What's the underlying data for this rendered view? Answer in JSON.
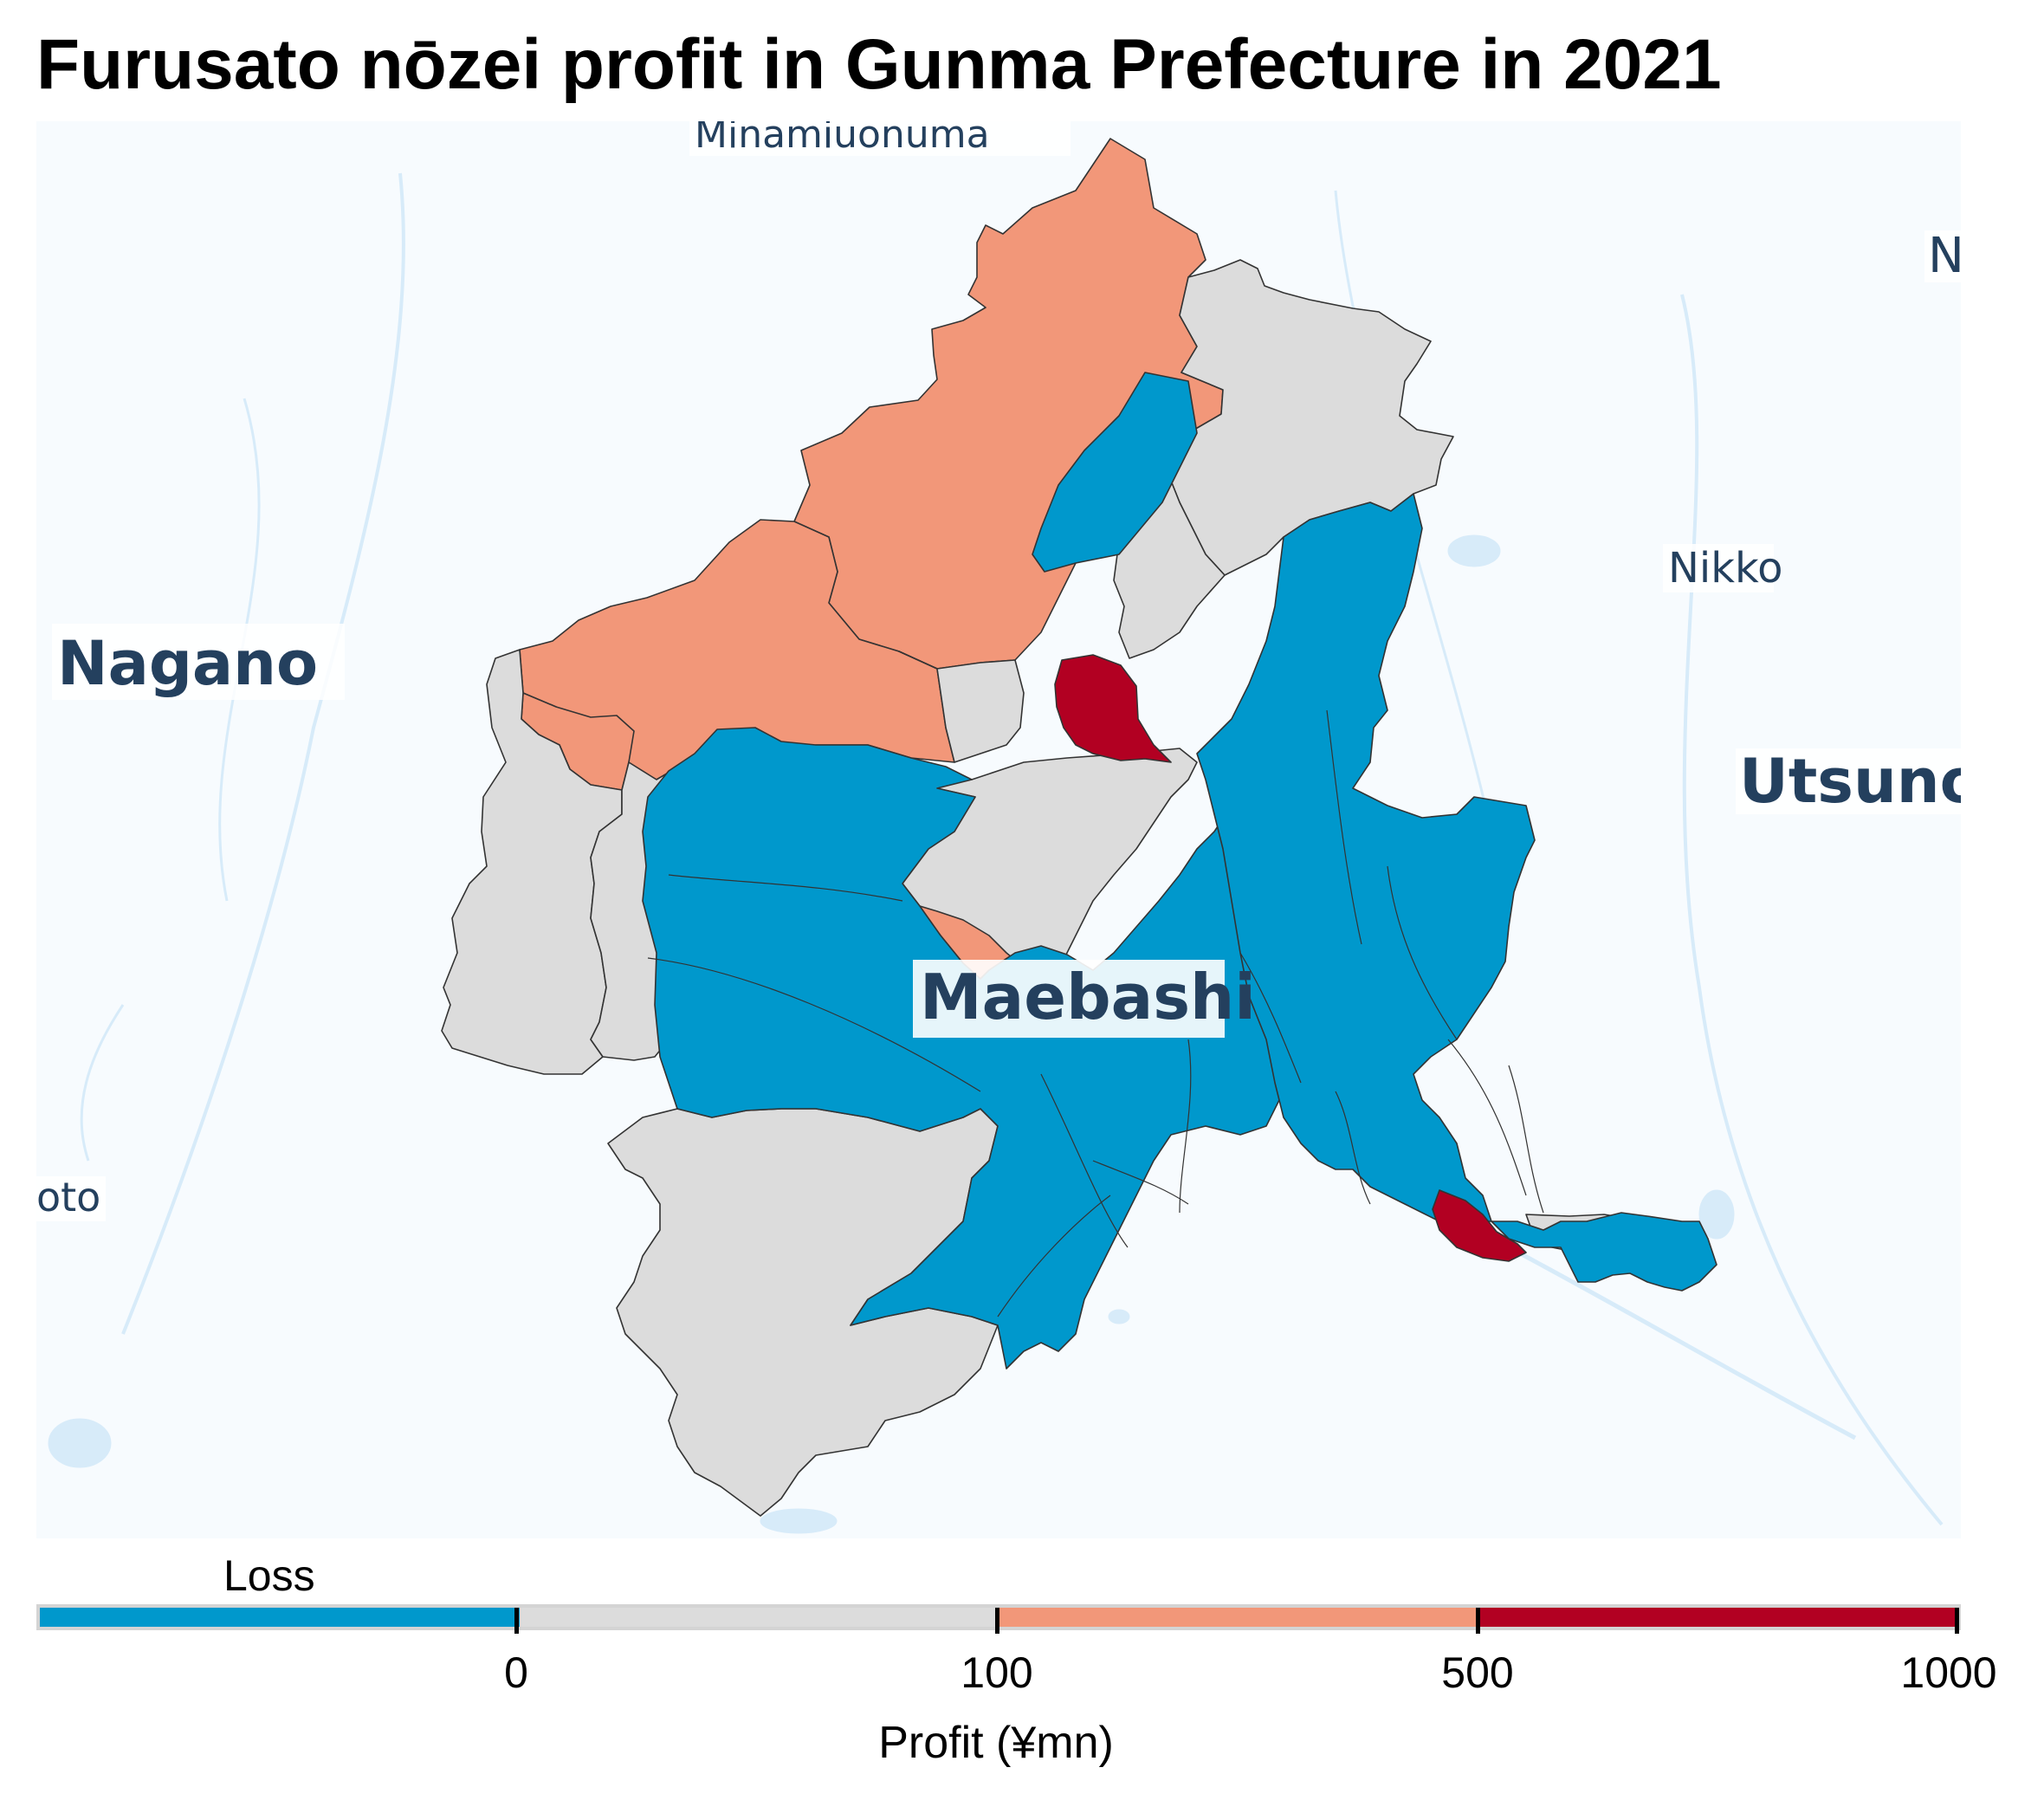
{
  "title": "Furusato nōzei profit in Gunma Prefecture in 2021",
  "colors": {
    "loss": "#0098cc",
    "profit_0_100": "#dcdcdc",
    "profit_100_500": "#f29779",
    "profit_500_1000": "#b20022",
    "background": "#f7fbfe",
    "water": "#d7ebf9",
    "label_text": "#24405e"
  },
  "map": {
    "place_labels": [
      "Minamiuonuma",
      "Nagano",
      "Nikko",
      "Utsuno",
      "Maebashi",
      "oto",
      "N"
    ],
    "regions": [
      {
        "name": "North (Minakami)",
        "category": "profit_100_500"
      },
      {
        "name": "Northwest",
        "category": "profit_100_500"
      },
      {
        "name": "West small",
        "category": "profit_100_500"
      },
      {
        "name": "Central small",
        "category": "profit_100_500"
      },
      {
        "name": "Northeast",
        "category": "profit_0_100"
      },
      {
        "name": "Northeast inner",
        "category": "profit_0_100"
      },
      {
        "name": "Far west",
        "category": "profit_0_100"
      },
      {
        "name": "West middle",
        "category": "profit_0_100"
      },
      {
        "name": "Central strip",
        "category": "profit_0_100"
      },
      {
        "name": "Southwest",
        "category": "profit_0_100"
      },
      {
        "name": "East tail",
        "category": "profit_0_100"
      },
      {
        "name": "Central",
        "category": "loss"
      },
      {
        "name": "East",
        "category": "loss"
      },
      {
        "name": "North central",
        "category": "profit_500_1000"
      },
      {
        "name": "Southeast",
        "category": "profit_500_1000"
      }
    ]
  },
  "legend": {
    "title": "Loss",
    "xlabel": "Profit (¥mn)",
    "ticks": [
      "0",
      "100",
      "500",
      "1000"
    ],
    "bins": [
      "loss",
      "profit_0_100",
      "profit_100_500",
      "profit_500_1000"
    ]
  }
}
